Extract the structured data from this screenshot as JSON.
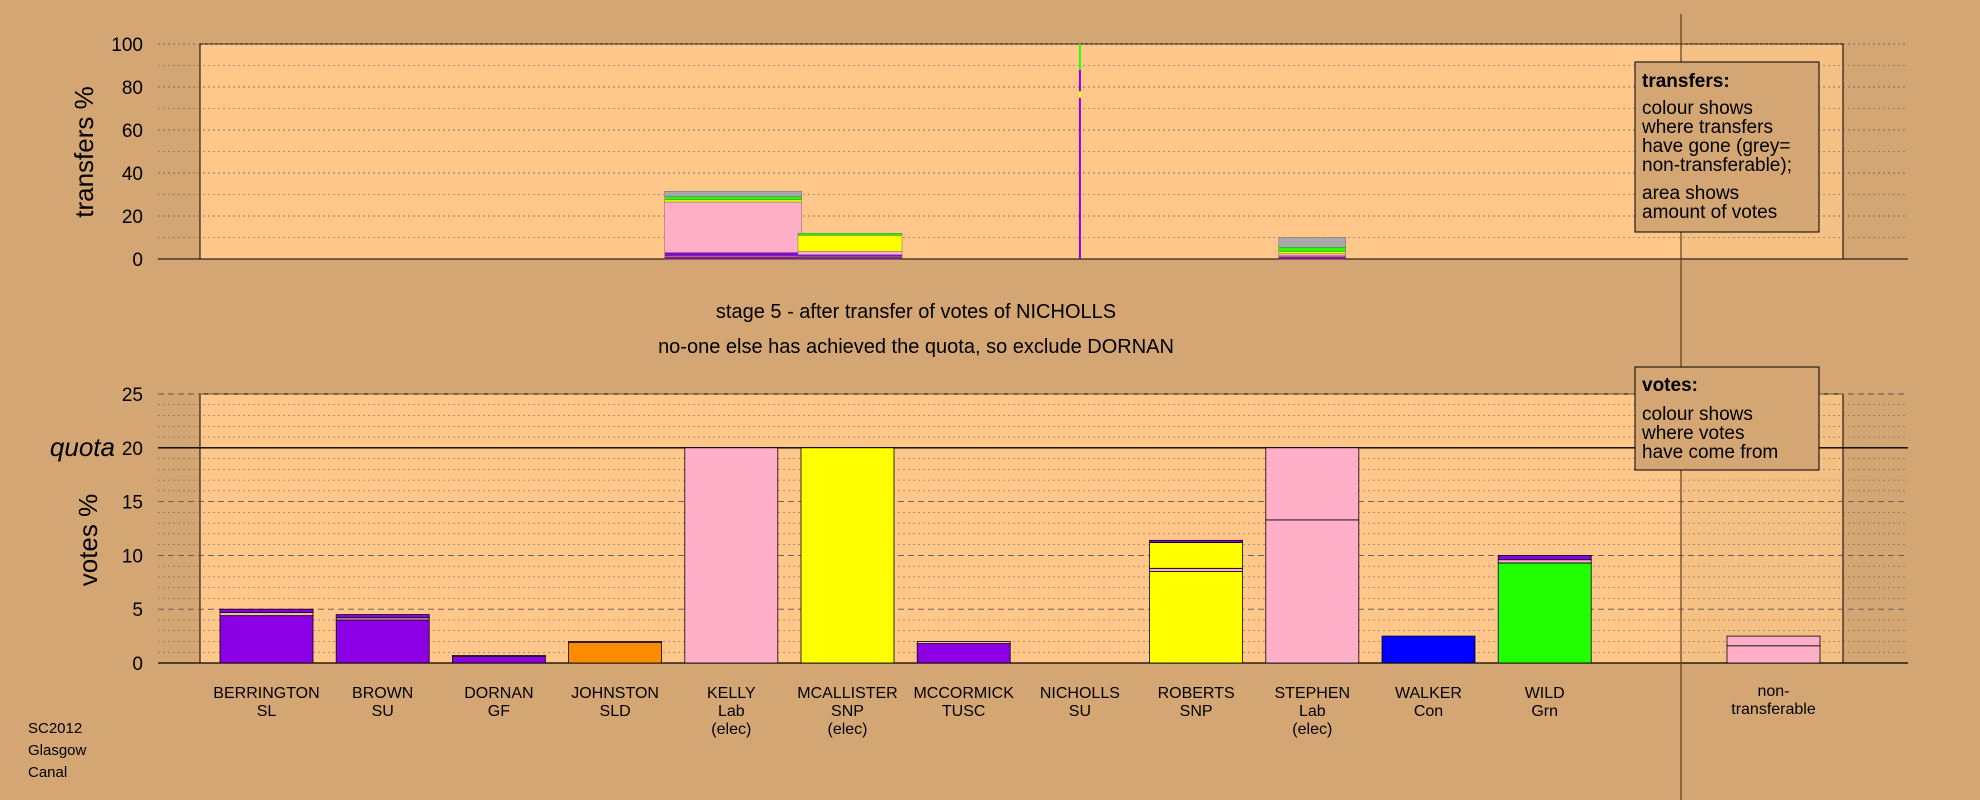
{
  "footer": {
    "lines": [
      "SC2012",
      "Glasgow",
      "Canal"
    ]
  },
  "stage": {
    "line1": "stage 5 - after transfer of votes of NICHOLLS",
    "line2": "no-one else has achieved the quota, so exclude DORNAN"
  },
  "colors": {
    "background": "#D4A673",
    "panel": "#FFC88A",
    "SL": "#8C00E6",
    "SU": "#8C00E6",
    "GF": "#8C00E6",
    "SLD": "#FF8C00",
    "Lab": "#FFB0C8",
    "SNP": "#FFFF00",
    "TUSC": "#8C00E6",
    "Con": "#0000FF",
    "Grn": "#22FF00",
    "non_transferable": "#A8A8A8"
  },
  "chart_data": [
    {
      "id": "transfers",
      "type": "bar",
      "ylabel": "transfers %",
      "ylim": [
        0,
        100
      ],
      "yticks": [
        0,
        20,
        40,
        60,
        80,
        100
      ],
      "grid": true,
      "legend": {
        "placement": "top-right",
        "title": "transfers:",
        "lines": [
          "colour shows",
          "where transfers",
          "have gone (grey=",
          "non-transferable);",
          "area shows",
          "amount of votes"
        ]
      },
      "bars": [
        {
          "candidate": "KELLY",
          "segments": [
            {
              "value": 1.0,
              "color": "#8C00E6"
            },
            {
              "value": 0.5,
              "color": "#FF8C00"
            },
            {
              "value": 1.5,
              "color": "#8C00E6"
            },
            {
              "value": 23.5,
              "color": "#FFB0C8"
            },
            {
              "value": 1.0,
              "color": "#FFFF00"
            },
            {
              "value": 1.5,
              "color": "#22FF00"
            },
            {
              "value": 2.5,
              "color": "#A8A8A8"
            }
          ]
        },
        {
          "candidate": "MCALLISTER",
          "segments": [
            {
              "value": 0.8,
              "color": "#8C00E6"
            },
            {
              "value": 0.4,
              "color": "#FF8C00"
            },
            {
              "value": 0.8,
              "color": "#8C00E6"
            },
            {
              "value": 1.5,
              "color": "#FFB0C8"
            },
            {
              "value": 7.5,
              "color": "#FFFF00"
            },
            {
              "value": 1.0,
              "color": "#22FF00"
            }
          ]
        },
        {
          "candidate": "NICHOLLS",
          "thin": true,
          "segments": [
            {
              "value": 10,
              "color": "#8C00E6"
            },
            {
              "value": 20,
              "color": "#8C00E6"
            },
            {
              "value": 10,
              "color": "#8C00E6"
            },
            {
              "value": 35,
              "color": "#8C00E6"
            },
            {
              "value": 3,
              "color": "#FFFF00"
            },
            {
              "value": 10,
              "color": "#8C00E6"
            },
            {
              "value": 12,
              "color": "#22FF00"
            }
          ]
        },
        {
          "candidate": "STEPHEN",
          "segments": [
            {
              "value": 1.0,
              "color": "#8C00E6"
            },
            {
              "value": 0.5,
              "color": "#FF8C00"
            },
            {
              "value": 1.0,
              "color": "#FFB0C8"
            },
            {
              "value": 1.0,
              "color": "#FFFF00"
            },
            {
              "value": 2.0,
              "color": "#22FF00"
            },
            {
              "value": 4.5,
              "color": "#A8A8A8"
            }
          ]
        }
      ]
    },
    {
      "id": "votes",
      "type": "bar",
      "ylabel": "votes %",
      "ylim": [
        0,
        25
      ],
      "yticks": [
        0,
        5,
        10,
        15,
        20,
        25
      ],
      "grid": true,
      "quota": {
        "label": "quota",
        "value": 20
      },
      "legend": {
        "placement": "top-right",
        "title": "votes:",
        "lines": [
          "colour shows",
          "where votes",
          "have come from"
        ]
      },
      "candidates": [
        {
          "name": "BERRINGTON",
          "party": "SL",
          "note": "",
          "segments": [
            {
              "value": 4.4,
              "color": "#8C00E6"
            },
            {
              "value": 0.3,
              "color": "#FFB0C8"
            },
            {
              "value": 0.3,
              "color": "#8C00E6"
            }
          ]
        },
        {
          "name": "BROWN",
          "party": "SU",
          "note": "",
          "segments": [
            {
              "value": 4.0,
              "color": "#8C00E6"
            },
            {
              "value": 0.2,
              "color": "#FFB0C8"
            },
            {
              "value": 0.3,
              "color": "#8C00E6"
            }
          ]
        },
        {
          "name": "DORNAN",
          "party": "GF",
          "note": "",
          "segments": [
            {
              "value": 0.6,
              "color": "#8C00E6"
            },
            {
              "value": 0.1,
              "color": "#FFB0C8"
            }
          ]
        },
        {
          "name": "JOHNSTON",
          "party": "SLD",
          "note": "",
          "segments": [
            {
              "value": 1.9,
              "color": "#FF8C00"
            },
            {
              "value": 0.1,
              "color": "#FFB0C8"
            }
          ]
        },
        {
          "name": "KELLY",
          "party": "Lab",
          "note": "(elec)",
          "segments": [
            {
              "value": 20,
              "color": "#FFB0C8"
            }
          ]
        },
        {
          "name": "MCALLISTER",
          "party": "SNP",
          "note": "(elec)",
          "segments": [
            {
              "value": 20,
              "color": "#FFFF00"
            }
          ]
        },
        {
          "name": "MCCORMICK",
          "party": "TUSC",
          "note": "",
          "segments": [
            {
              "value": 1.8,
              "color": "#8C00E6"
            },
            {
              "value": 0.2,
              "color": "#FFB0C8"
            }
          ]
        },
        {
          "name": "NICHOLLS",
          "party": "SU",
          "note": "",
          "segments": []
        },
        {
          "name": "ROBERTS",
          "party": "SNP",
          "note": "",
          "segments": [
            {
              "value": 8.5,
              "color": "#FFFF00"
            },
            {
              "value": 0.3,
              "color": "#FFB0C8"
            },
            {
              "value": 2.4,
              "color": "#FFFF00"
            },
            {
              "value": 0.2,
              "color": "#8C00E6"
            }
          ]
        },
        {
          "name": "STEPHEN",
          "party": "Lab",
          "note": "(elec)",
          "segments": [
            {
              "value": 13.3,
              "color": "#FFB0C8"
            },
            {
              "value": 6.7,
              "color": "#FFB0C8"
            }
          ]
        },
        {
          "name": "WALKER",
          "party": "Con",
          "note": "",
          "segments": [
            {
              "value": 2.5,
              "color": "#0000FF"
            }
          ]
        },
        {
          "name": "WILD",
          "party": "Grn",
          "note": "",
          "segments": [
            {
              "value": 9.3,
              "color": "#22FF00"
            },
            {
              "value": 0.3,
              "color": "#FFB0C8"
            },
            {
              "value": 0.4,
              "color": "#8C00E6"
            }
          ]
        }
      ],
      "non_transferable": {
        "label": [
          "non-",
          "transferable"
        ],
        "segments": [
          {
            "value": 1.6,
            "color": "#FFB0C8"
          },
          {
            "value": 0.9,
            "color": "#FFB0C8"
          }
        ]
      }
    }
  ]
}
